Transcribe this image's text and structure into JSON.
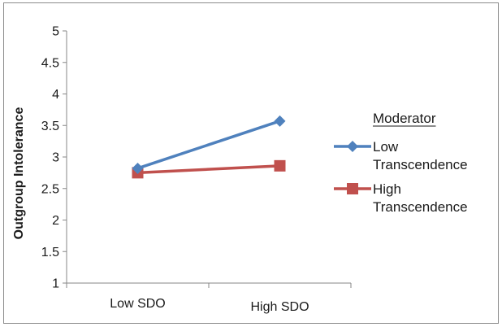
{
  "chart_data": {
    "type": "line",
    "categories": [
      "Low SDO",
      "High SDO"
    ],
    "series": [
      {
        "name": "Low Transcendence",
        "name_lines": [
          "Low",
          "Transcendence"
        ],
        "values": [
          2.82,
          3.57
        ],
        "color": "#4f81bd",
        "marker": "diamond"
      },
      {
        "name": "High Transcendence",
        "name_lines": [
          "High",
          "Transcendence"
        ],
        "values": [
          2.75,
          2.86
        ],
        "color": "#c0504d",
        "marker": "square"
      }
    ],
    "ylabel": "Outgroup Intolerance",
    "xlabel": "",
    "ylim": [
      1,
      5
    ],
    "yticks": [
      "1",
      "1.5",
      "2",
      "2.5",
      "3",
      "3.5",
      "4",
      "4.5",
      "5"
    ],
    "grid": false,
    "legend": {
      "title": "Moderator",
      "placement": "right"
    }
  }
}
